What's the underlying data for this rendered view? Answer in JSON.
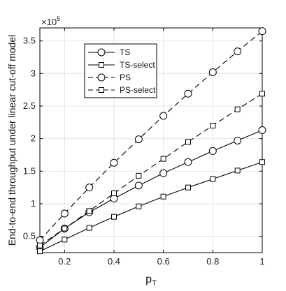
{
  "chart_data": {
    "type": "line",
    "xlabel_base": "p",
    "xlabel_sub": "T",
    "ylabel": "End-to-end throughput under linear cut-off model",
    "y_exponent_label_base": "×10",
    "y_exponent_label_power": "5",
    "xlim": [
      0.1,
      1.0
    ],
    "ylim": [
      0.25,
      3.7
    ],
    "x_ticks": [
      0.2,
      0.4,
      0.6,
      0.8,
      1.0
    ],
    "x_tick_labels": [
      "0.2",
      "0.4",
      "0.6",
      "0.8",
      "1"
    ],
    "y_ticks": [
      0.5,
      1.0,
      1.5,
      2.0,
      2.5,
      3.0,
      3.5
    ],
    "y_tick_labels": [
      "0.5",
      "1",
      "1.5",
      "2",
      "2.5",
      "3",
      "3.5"
    ],
    "grid": true,
    "legend_position": "upper-left",
    "x": [
      0.1,
      0.2,
      0.3,
      0.4,
      0.5,
      0.6,
      0.7,
      0.8,
      0.9,
      1.0
    ],
    "series": [
      {
        "name": "TS",
        "marker": "circle",
        "dash": "solid",
        "color": "#000000",
        "values": [
          0.33,
          0.62,
          0.87,
          1.08,
          1.28,
          1.47,
          1.64,
          1.81,
          1.97,
          2.13
        ]
      },
      {
        "name": "TS-select",
        "marker": "square",
        "dash": "solid",
        "color": "#000000",
        "values": [
          0.27,
          0.45,
          0.63,
          0.8,
          0.96,
          1.11,
          1.25,
          1.38,
          1.51,
          1.64
        ]
      },
      {
        "name": "PS",
        "marker": "circle",
        "dash": "dashed",
        "color": "#000000",
        "values": [
          0.44,
          0.85,
          1.25,
          1.63,
          1.99,
          2.35,
          2.69,
          3.02,
          3.34,
          3.65
        ]
      },
      {
        "name": "PS-select",
        "marker": "square",
        "dash": "dashed",
        "color": "#000000",
        "values": [
          0.36,
          0.62,
          0.89,
          1.16,
          1.43,
          1.69,
          1.95,
          2.2,
          2.45,
          2.69
        ]
      }
    ]
  }
}
